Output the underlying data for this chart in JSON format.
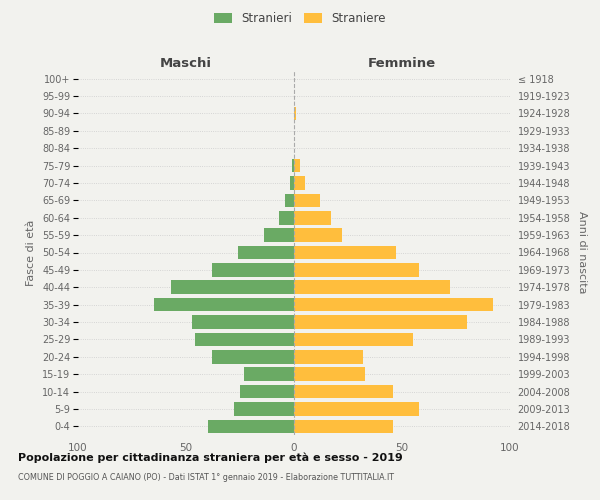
{
  "age_groups": [
    "100+",
    "95-99",
    "90-94",
    "85-89",
    "80-84",
    "75-79",
    "70-74",
    "65-69",
    "60-64",
    "55-59",
    "50-54",
    "45-49",
    "40-44",
    "35-39",
    "30-34",
    "25-29",
    "20-24",
    "15-19",
    "10-14",
    "5-9",
    "0-4"
  ],
  "birth_years": [
    "≤ 1918",
    "1919-1923",
    "1924-1928",
    "1929-1933",
    "1934-1938",
    "1939-1943",
    "1944-1948",
    "1949-1953",
    "1954-1958",
    "1959-1963",
    "1964-1968",
    "1969-1973",
    "1974-1978",
    "1979-1983",
    "1984-1988",
    "1989-1993",
    "1994-1998",
    "1999-2003",
    "2004-2008",
    "2009-2013",
    "2014-2018"
  ],
  "maschi": [
    0,
    0,
    0,
    0,
    0,
    1,
    2,
    4,
    7,
    14,
    26,
    38,
    57,
    65,
    47,
    46,
    38,
    23,
    25,
    28,
    40
  ],
  "femmine": [
    0,
    0,
    1,
    0,
    0,
    3,
    5,
    12,
    17,
    22,
    47,
    58,
    72,
    92,
    80,
    55,
    32,
    33,
    46,
    58,
    46
  ],
  "color_maschi": "#6aaa64",
  "color_femmine": "#ffbe3d",
  "background_color": "#f2f2ee",
  "title": "Popolazione per cittadinanza straniera per età e sesso - 2019",
  "subtitle": "COMUNE DI POGGIO A CAIANO (PO) - Dati ISTAT 1° gennaio 2019 - Elaborazione TUTTITALIA.IT",
  "ylabel_left": "Fasce di età",
  "ylabel_right": "Anni di nascita",
  "header_left": "Maschi",
  "header_right": "Femmine",
  "legend_maschi": "Stranieri",
  "legend_femmine": "Straniere",
  "xlim": 100,
  "dpi": 100,
  "figsize": [
    6.0,
    5.0
  ]
}
